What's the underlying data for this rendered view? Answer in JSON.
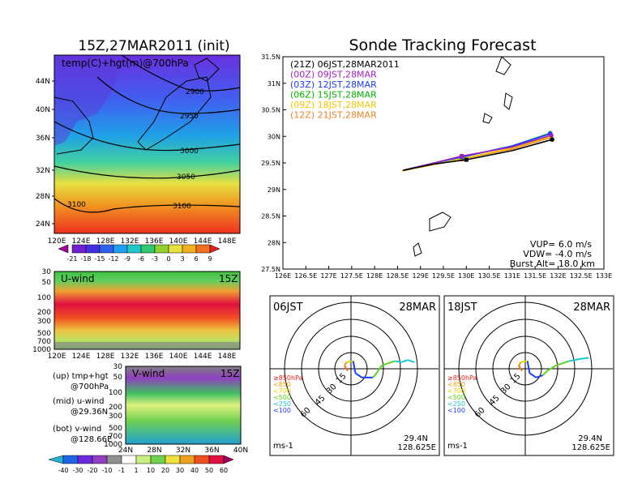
{
  "left_title": "15Z,27MAR2011 (init)",
  "main_title": "Sonde Tracking Forecast",
  "map_panel": {
    "label": "temp(C)+hgt(m)@700hPa",
    "lat_ticks": [
      "44N",
      "40N",
      "36N",
      "32N",
      "28N",
      "24N"
    ],
    "lon_ticks": [
      "120E",
      "124E",
      "128E",
      "132E",
      "136E",
      "140E",
      "144E",
      "148E"
    ],
    "contours": [
      "2900",
      "2950",
      "3000",
      "3050",
      "3100",
      "3100"
    ],
    "colorbar_ticks": [
      "-21",
      "-18",
      "-15",
      "-12",
      "-9",
      "-6",
      "-3",
      "0",
      "3",
      "6",
      "9"
    ]
  },
  "u_panel": {
    "label": "U-wind",
    "time": "15Z",
    "p_ticks": [
      "30",
      "50",
      "100",
      "200",
      "300",
      "500",
      "700",
      "1000"
    ],
    "lon_ticks": [
      "120E",
      "124E",
      "128E",
      "132E",
      "136E",
      "140E",
      "144E",
      "148E"
    ]
  },
  "v_panel": {
    "label": "V-wind",
    "time": "15Z",
    "p_ticks": [
      "30",
      "50",
      "100",
      "200",
      "300",
      "500",
      "700",
      "1000"
    ],
    "lat_ticks": [
      "24N",
      "28N",
      "32N",
      "36N",
      "40N"
    ]
  },
  "legend_notes": [
    {
      "a": "(up) tmp+hgt",
      "b": "@700hPa"
    },
    {
      "a": "(mid) u-wind",
      "b": "@29.36N"
    },
    {
      "a": "(bot) v-wind",
      "b": "@128.66E"
    }
  ],
  "bottom_colorbar_ticks": [
    "-40",
    "-30",
    "-20",
    "-10",
    "-1",
    "1",
    "10",
    "20",
    "30",
    "40",
    "50",
    "60"
  ],
  "track_legend": [
    {
      "text": "(21Z) 06JST,28MAR2011",
      "color": "#000000"
    },
    {
      "text": "(00Z) 09JST,28MAR",
      "color": "#a020c0"
    },
    {
      "text": "(03Z) 12JST,28MAR",
      "color": "#1e3cff"
    },
    {
      "text": "(06Z) 15JST,28MAR",
      "color": "#00b400"
    },
    {
      "text": "(09Z) 18JST,28MAR",
      "color": "#f0c800"
    },
    {
      "text": "(12Z) 21JST,28MAR",
      "color": "#f08228"
    }
  ],
  "track_info": [
    "VUP= 6.0 m/s",
    "VDW= -4.0 m/s",
    "Burst Alt= 18.0 km"
  ],
  "track_lat_ticks": [
    "31.5N",
    "31N",
    "30.5N",
    "30N",
    "29.5N",
    "29N",
    "28.5N",
    "28N",
    "27.5N"
  ],
  "track_lon_ticks": [
    "126E",
    "126.5E",
    "127E",
    "127.5E",
    "128E",
    "128.5E",
    "129E",
    "129.5E",
    "130E",
    "130.5E",
    "131E",
    "131.5E",
    "132E",
    "132.5E",
    "133E"
  ],
  "hodo_left": {
    "title": "06JST",
    "date": "28MAR",
    "lat": "29.4N",
    "lon": "128.625E",
    "unit": "ms-1"
  },
  "hodo_right": {
    "title": "18JST",
    "date": "28MAR",
    "lat": "29.4N",
    "lon": "128.625E",
    "unit": "ms-1"
  },
  "hodo_rings": [
    "15",
    "30",
    "45",
    "60"
  ],
  "hodo_legend": [
    {
      "text": "≥850hPa",
      "color": "#e02020"
    },
    {
      "text": "<850",
      "color": "#f0a000"
    },
    {
      "text": "<700",
      "color": "#e6d200"
    },
    {
      "text": "<500",
      "color": "#5ad21e"
    },
    {
      "text": "<250",
      "color": "#1ec8d2"
    },
    {
      "text": "<100",
      "color": "#1e3cff"
    }
  ],
  "chart_data": {
    "type": "line",
    "title": "Sonde Tracking Forecast",
    "xlim": [
      126,
      133
    ],
    "ylim": [
      27.5,
      31.5
    ],
    "launch": {
      "lon": 128.625,
      "lat": 29.36
    },
    "series": [
      {
        "name": "(21Z) 06JST,28MAR2011",
        "color": "#000000",
        "points": [
          [
            128.62,
            29.36
          ],
          [
            129.3,
            29.48
          ],
          [
            130.0,
            29.56
          ],
          [
            131.0,
            29.73
          ],
          [
            131.87,
            29.94
          ]
        ]
      },
      {
        "name": "(00Z) 09JST,28MAR",
        "color": "#a020c0",
        "points": [
          [
            128.62,
            29.36
          ],
          [
            129.3,
            29.5
          ],
          [
            129.9,
            29.63
          ],
          [
            131.0,
            29.8
          ],
          [
            131.85,
            30.02
          ]
        ]
      },
      {
        "name": "(03Z) 12JST,28MAR",
        "color": "#1e3cff",
        "points": [
          [
            128.62,
            29.36
          ],
          [
            129.3,
            29.5
          ],
          [
            129.9,
            29.61
          ],
          [
            131.0,
            29.82
          ],
          [
            131.83,
            30.05
          ]
        ]
      },
      {
        "name": "(06Z) 15JST,28MAR",
        "color": "#00b400",
        "points": [
          [
            128.62,
            29.36
          ],
          [
            129.3,
            29.5
          ],
          [
            129.9,
            29.61
          ],
          [
            131.0,
            29.82
          ],
          [
            131.83,
            30.06
          ]
        ]
      },
      {
        "name": "(09Z) 18JST,28MAR",
        "color": "#f0c800",
        "points": [
          [
            128.6,
            29.35
          ],
          [
            129.3,
            29.47
          ],
          [
            129.9,
            29.58
          ],
          [
            131.0,
            29.78
          ],
          [
            131.85,
            30.0
          ]
        ]
      },
      {
        "name": "(12Z) 21JST,28MAR",
        "color": "#f08228",
        "points": [
          [
            128.6,
            29.35
          ],
          [
            129.3,
            29.47
          ],
          [
            129.9,
            29.57
          ],
          [
            131.0,
            29.76
          ],
          [
            131.85,
            29.98
          ]
        ]
      }
    ],
    "hodographs": [
      {
        "panel": "06JST",
        "points": [
          [
            -3,
            -2
          ],
          [
            -6,
            3
          ],
          [
            -4,
            6
          ],
          [
            2,
            7
          ],
          [
            4,
            -4
          ],
          [
            10,
            -8
          ],
          [
            20,
            -8
          ],
          [
            22,
            -6
          ],
          [
            28,
            3
          ],
          [
            40,
            7
          ],
          [
            46,
            6
          ],
          [
            52,
            8
          ],
          [
            58,
            6
          ]
        ]
      },
      {
        "panel": "18JST",
        "points": [
          [
            -3,
            -2
          ],
          [
            -6,
            3
          ],
          [
            -4,
            6
          ],
          [
            2,
            7
          ],
          [
            4,
            -4
          ],
          [
            10,
            -8
          ],
          [
            16,
            -6
          ],
          [
            20,
            -2
          ],
          [
            28,
            3
          ],
          [
            40,
            7
          ],
          [
            50,
            9
          ],
          [
            58,
            10
          ]
        ]
      }
    ]
  }
}
